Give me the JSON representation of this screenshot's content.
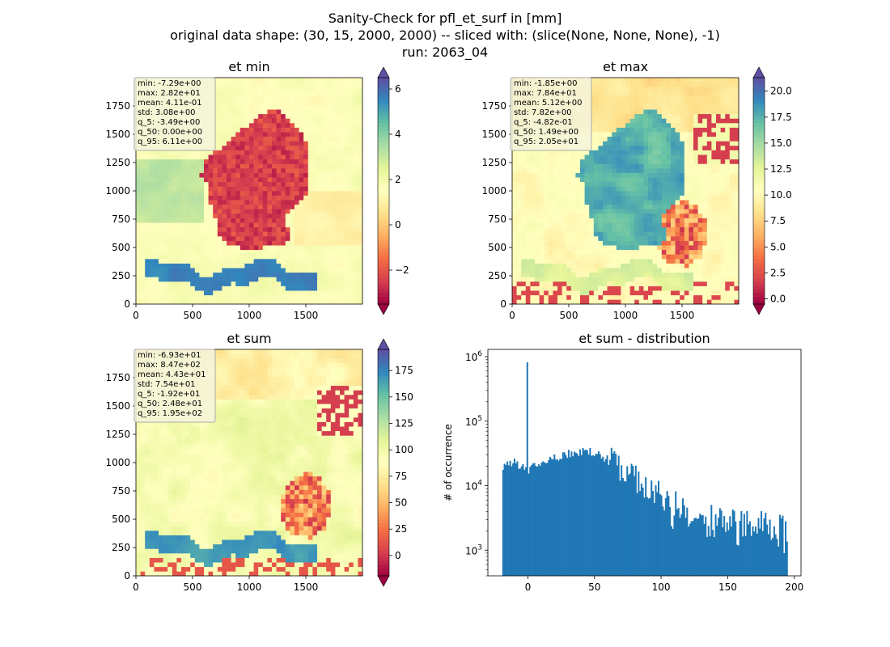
{
  "figure": {
    "title": "Sanity-Check for pfl_et_surf in [mm]",
    "subtitle": "original data shape: (30, 15, 2000, 2000) -- sliced with: (slice(None, None, None), -1)",
    "run": "run: 2063_04"
  },
  "chart_data": [
    {
      "type": "heatmap",
      "title": "et min",
      "colormap": "Spectral",
      "xlim": [
        0,
        2000
      ],
      "ylim": [
        0,
        2000
      ],
      "x_ticks": [
        "0",
        "500",
        "1000",
        "1500"
      ],
      "y_ticks": [
        "0",
        "250",
        "500",
        "750",
        "1000",
        "1250",
        "1500",
        "1750"
      ],
      "colorbar": {
        "range": [
          -3.5,
          6.5
        ],
        "ticks": [
          -2,
          0,
          2,
          4,
          6
        ],
        "tick_labels": [
          "−2",
          "0",
          "2",
          "4",
          "6"
        ]
      },
      "stats": [
        "min: -7.29e+00",
        "max: 2.82e+01",
        "mean: 4.11e-01",
        "std: 3.08e+00",
        "q_5: -3.49e+00",
        "q_50: 0.00e+00",
        "q_95: 6.11e+00"
      ]
    },
    {
      "type": "heatmap",
      "title": "et max",
      "colormap": "Spectral",
      "xlim": [
        0,
        2000
      ],
      "ylim": [
        0,
        2000
      ],
      "x_ticks": [
        "0",
        "500",
        "1000",
        "1500"
      ],
      "y_ticks": [
        "0",
        "250",
        "500",
        "750",
        "1000",
        "1250",
        "1500",
        "1750"
      ],
      "colorbar": {
        "range": [
          -0.5,
          21.3
        ],
        "ticks": [
          0,
          2.5,
          5,
          7.5,
          10,
          12.5,
          15,
          17.5,
          20
        ],
        "tick_labels": [
          "0.0",
          "2.5",
          "5.0",
          "7.5",
          "10.0",
          "12.5",
          "15.0",
          "17.5",
          "20.0"
        ]
      },
      "stats": [
        "min: -1.85e+00",
        "max: 7.84e+01",
        "mean: 5.12e+00",
        "std: 7.82e+00",
        "q_5: -4.82e-01",
        "q_50: 1.49e+00",
        "q_95: 2.05e+01"
      ]
    },
    {
      "type": "heatmap",
      "title": "et sum",
      "colormap": "Spectral",
      "xlim": [
        0,
        2000
      ],
      "ylim": [
        0,
        2000
      ],
      "x_ticks": [
        "0",
        "500",
        "1000",
        "1500"
      ],
      "y_ticks": [
        "0",
        "250",
        "500",
        "750",
        "1000",
        "1250",
        "1500",
        "1750"
      ],
      "colorbar": {
        "range": [
          -19.2,
          195
        ],
        "ticks": [
          0,
          25,
          50,
          75,
          100,
          125,
          150,
          175
        ],
        "tick_labels": [
          "0",
          "25",
          "50",
          "75",
          "100",
          "125",
          "150",
          "175"
        ]
      },
      "stats": [
        "min: -6.93e+01",
        "max: 8.47e+02",
        "mean: 4.43e+01",
        "std: 7.54e+01",
        "q_5: -1.92e+01",
        "q_50: 2.48e+01",
        "q_95: 1.95e+02"
      ]
    },
    {
      "type": "bar",
      "title": "et sum - distribution",
      "ylabel": "# of occurrence",
      "xlabel": "",
      "y_scale": "log",
      "xlim": [
        -30,
        205
      ],
      "ylim": [
        400,
        1300000
      ],
      "x_ticks": [
        0,
        50,
        100,
        150,
        200
      ],
      "y_ticks": [
        {
          "value": 1000,
          "label": "10^3"
        },
        {
          "value": 10000,
          "label": "10^4"
        },
        {
          "value": 100000,
          "label": "10^5"
        },
        {
          "value": 1000000,
          "label": "10^6"
        }
      ],
      "bins": {
        "start": -19.2,
        "end": 195,
        "count": 200
      },
      "envelope": [
        [
          -19,
          18000
        ],
        [
          -15,
          22000
        ],
        [
          -10,
          24000
        ],
        [
          -5,
          20000
        ],
        [
          -2,
          17000
        ],
        [
          0,
          16000
        ],
        [
          5,
          20000
        ],
        [
          15,
          24000
        ],
        [
          25,
          29000
        ],
        [
          35,
          33000
        ],
        [
          45,
          34000
        ],
        [
          50,
          32000
        ],
        [
          55,
          29000
        ],
        [
          65,
          23000
        ],
        [
          75,
          16000
        ],
        [
          85,
          11000
        ],
        [
          95,
          8000
        ],
        [
          105,
          5800
        ],
        [
          115,
          4500
        ],
        [
          125,
          3900
        ],
        [
          135,
          3500
        ],
        [
          145,
          3200
        ],
        [
          155,
          2900
        ],
        [
          165,
          2700
        ],
        [
          175,
          2500
        ],
        [
          185,
          2300
        ],
        [
          195,
          2200
        ]
      ],
      "spike": {
        "x": 0,
        "value": 820000
      },
      "color": "#1f77b4"
    }
  ]
}
